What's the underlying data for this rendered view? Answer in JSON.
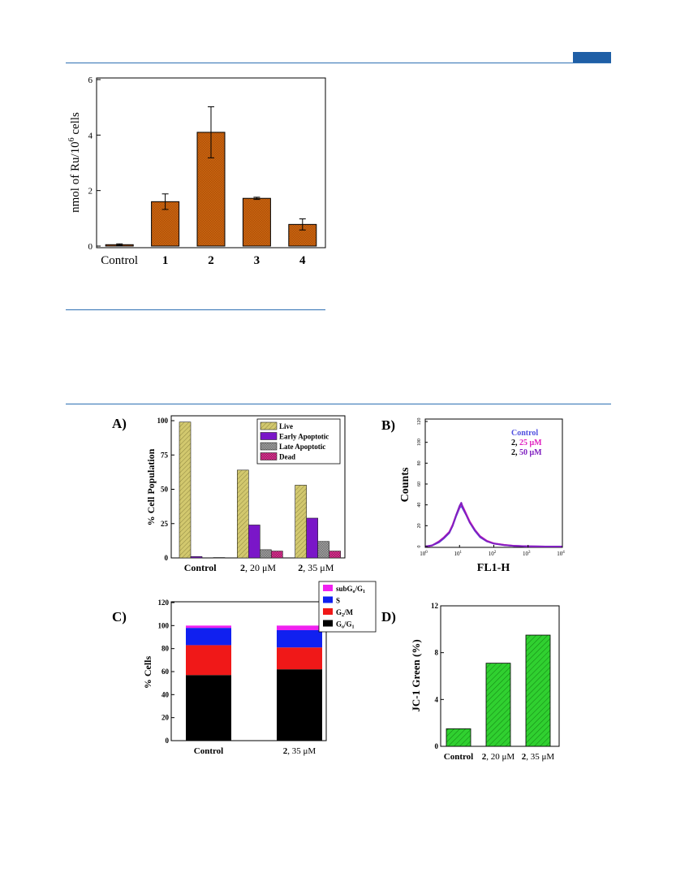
{
  "page": {
    "accent": "#1f5fa6",
    "rule_color": "#2d6fb3"
  },
  "chart_data": [
    {
      "id": "uptake",
      "type": "bar",
      "ylabel_main": "nmol of Ru/10",
      "ylabel_sup": "6",
      "ylabel_tail": " cells",
      "ylim": [
        0,
        6
      ],
      "yticks": [
        0,
        2,
        4,
        6
      ],
      "categories": [
        "Control",
        "1",
        "2",
        "3",
        "4"
      ],
      "values": [
        0.05,
        1.6,
        4.1,
        1.72,
        0.78
      ],
      "errors": [
        0.03,
        0.28,
        0.92,
        0.04,
        0.2
      ],
      "color": "#c8620f"
    },
    {
      "id": "panelA",
      "type": "bar",
      "panel_label": "A)",
      "ylabel": "% Cell Population",
      "ylim": [
        0,
        100
      ],
      "yticks": [
        0,
        25,
        50,
        75,
        100
      ],
      "categories": [
        {
          "bold": "Control",
          "rest": ""
        },
        {
          "bold": "2",
          "rest": ", 20 μM"
        },
        {
          "bold": "2",
          "rest": ", 35 μM"
        }
      ],
      "series": [
        {
          "name": "Live",
          "color": "#d2c86e",
          "values": [
            99,
            64,
            53
          ]
        },
        {
          "name": "Early Apoptotic",
          "color": "#7a16c8",
          "values": [
            1,
            24,
            29
          ]
        },
        {
          "name": "Late Apoptotic",
          "color": "#9a9a9a",
          "values": [
            0,
            6,
            12
          ]
        },
        {
          "name": "Dead",
          "color": "#a0145c",
          "values": [
            0.3,
            5,
            5
          ]
        }
      ]
    },
    {
      "id": "panelB",
      "type": "line",
      "panel_label": "B)",
      "ylabel": "Counts",
      "xlabel": "FL1-H",
      "ylim": [
        0,
        120
      ],
      "yticks": [
        0,
        20,
        40,
        60,
        80,
        100,
        120
      ],
      "xticks": [
        "10",
        "10",
        "10",
        "10",
        "10"
      ],
      "xtick_exp": [
        "0",
        "1",
        "2",
        "3",
        "4"
      ],
      "x_log_range": [
        0,
        4
      ],
      "legend": [
        {
          "bold": "Control",
          "rest": "",
          "color": "#5050e0",
          "rest_color": "#5050e0"
        },
        {
          "bold": "2, ",
          "rest": "25 μM",
          "color": "#000000",
          "rest_color": "#e020c0"
        },
        {
          "bold": "2, ",
          "rest": "50 μM",
          "color": "#000000",
          "rest_color": "#8020c0"
        }
      ],
      "series": [
        {
          "name": "Control",
          "color": "#5050e0",
          "x": [
            0,
            0.2,
            0.4,
            0.55,
            0.7,
            0.8,
            0.9,
            1.0,
            1.05,
            1.1,
            1.2,
            1.3,
            1.45,
            1.6,
            1.8,
            2.0,
            2.3,
            2.6,
            3.0,
            3.5,
            4.0
          ],
          "y": [
            0,
            1,
            4,
            8,
            13,
            20,
            29,
            37,
            39,
            36,
            30,
            23,
            15,
            9,
            5,
            3,
            1.5,
            0.6,
            0.2,
            0,
            0
          ]
        },
        {
          "name": "25 μM",
          "color": "#e020c0",
          "x": [
            0,
            0.2,
            0.4,
            0.55,
            0.7,
            0.8,
            0.9,
            1.0,
            1.05,
            1.1,
            1.2,
            1.3,
            1.45,
            1.6,
            1.8,
            2.0,
            2.3,
            2.6,
            3.0,
            3.5,
            4.0
          ],
          "y": [
            0,
            1,
            5,
            9,
            14,
            21,
            30,
            38,
            41,
            38,
            31,
            24,
            16,
            10,
            5.5,
            3,
            1.6,
            0.7,
            0.2,
            0,
            0
          ]
        },
        {
          "name": "50 μM",
          "color": "#8020c0",
          "x": [
            0,
            0.2,
            0.4,
            0.55,
            0.7,
            0.8,
            0.9,
            1.0,
            1.05,
            1.1,
            1.2,
            1.3,
            1.45,
            1.6,
            1.8,
            2.0,
            2.3,
            2.6,
            3.0,
            3.5,
            4.0
          ],
          "y": [
            0,
            1.2,
            4.5,
            8.5,
            13.5,
            20,
            30,
            39,
            42,
            37,
            30,
            23,
            15.5,
            9.5,
            5,
            2.8,
            1.4,
            0.6,
            0.2,
            0,
            0
          ]
        }
      ]
    },
    {
      "id": "panelC",
      "type": "bar",
      "stacked": true,
      "panel_label": "C)",
      "ylabel": "% Cells",
      "ylim": [
        0,
        120
      ],
      "yticks": [
        0,
        20,
        40,
        60,
        80,
        100,
        120
      ],
      "categories": [
        {
          "bold": "Control",
          "rest": ""
        },
        {
          "bold": "2",
          "rest": ", 35 μM"
        }
      ],
      "series": [
        {
          "name": "G0/G1",
          "label": "G",
          "sub1": "o",
          "mid": "/G",
          "sub2": "1",
          "color": "#000000",
          "values": [
            57,
            62
          ]
        },
        {
          "name": "G2/M",
          "label": "G",
          "sub1": "2",
          "mid": "/M",
          "sub2": "",
          "color": "#f01818",
          "values": [
            26,
            19
          ]
        },
        {
          "name": "S",
          "label": "S",
          "sub1": "",
          "mid": "",
          "sub2": "",
          "color": "#1020f0",
          "values": [
            15,
            15
          ]
        },
        {
          "name": "subG0/G1",
          "label": "subG",
          "sub1": "o",
          "mid": "/G",
          "sub2": "1",
          "color": "#f020f0",
          "values": [
            2,
            4
          ]
        }
      ]
    },
    {
      "id": "panelD",
      "type": "bar",
      "panel_label": "D)",
      "ylabel": "JC-1 Green (%)",
      "ylim": [
        0,
        12
      ],
      "yticks": [
        0,
        4,
        8,
        12
      ],
      "categories": [
        {
          "bold": "Control",
          "rest": ""
        },
        {
          "bold": "2",
          "rest": ", 20 μM"
        },
        {
          "bold": "2",
          "rest": ", 35 μM"
        }
      ],
      "values": [
        1.5,
        7.1,
        9.5
      ],
      "color": "#30d030"
    }
  ]
}
